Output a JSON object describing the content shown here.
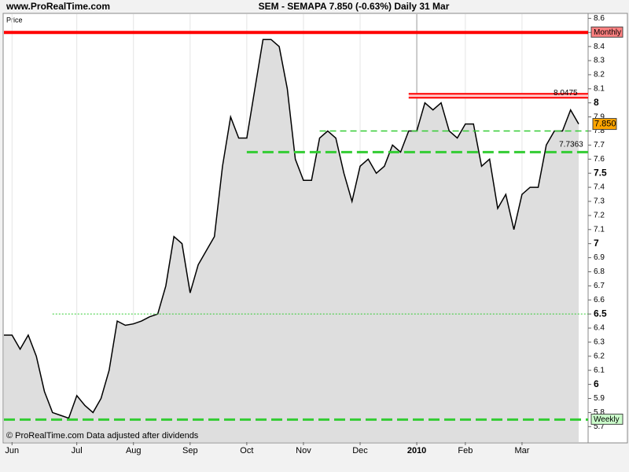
{
  "chart_data": {
    "type": "line",
    "site": "www.ProRealTime.com",
    "title": "SEM - SEMAPA    7.850 (-0.63%)    Daily  31 Mar",
    "panel_label": "Price",
    "footer": "© ProRealTime.com  Data adjusted after dividends",
    "categories": [
      null,
      "Jun",
      null,
      null,
      null,
      null,
      null,
      null,
      null,
      "Jul",
      null,
      null,
      null,
      null,
      null,
      null,
      "Aug",
      null,
      null,
      null,
      null,
      null,
      null,
      "Sep",
      null,
      null,
      null,
      null,
      null,
      null,
      "Oct",
      null,
      null,
      null,
      null,
      null,
      null,
      "Nov",
      null,
      null,
      null,
      null,
      null,
      null,
      "Dec",
      null,
      null,
      null,
      null,
      null,
      null,
      "2010",
      null,
      null,
      null,
      null,
      null,
      "Feb",
      null,
      null,
      null,
      null,
      null,
      null,
      "Mar",
      null,
      null,
      null,
      null,
      null,
      null,
      null
    ],
    "series": [
      {
        "name": "SEMAPA",
        "color": "#000000",
        "fill": "#dedede",
        "values": [
          6.35,
          6.35,
          6.25,
          6.35,
          6.2,
          5.95,
          5.8,
          5.78,
          5.76,
          5.92,
          5.85,
          5.8,
          5.9,
          6.1,
          6.45,
          6.42,
          6.43,
          6.45,
          6.48,
          6.5,
          6.7,
          7.05,
          7.0,
          6.65,
          6.85,
          6.95,
          7.05,
          7.55,
          7.9,
          7.75,
          7.75,
          8.1,
          8.45,
          8.45,
          8.4,
          8.1,
          7.6,
          7.45,
          7.45,
          7.75,
          7.8,
          7.75,
          7.5,
          7.3,
          7.55,
          7.6,
          7.5,
          7.55,
          7.7,
          7.65,
          7.8,
          7.8,
          8.0,
          7.95,
          8.0,
          7.8,
          7.75,
          7.85,
          7.85,
          7.55,
          7.6,
          7.25,
          7.35,
          7.1,
          7.35,
          7.4,
          7.4,
          7.7,
          7.8,
          7.8,
          7.95,
          7.85
        ]
      }
    ],
    "last_price": {
      "value": 7.85,
      "label": "7.850",
      "color": "#ffa500"
    },
    "levels": [
      {
        "value": 8.5,
        "color": "#ff0000",
        "style": "solid",
        "start": 0,
        "label": "Monthly"
      },
      {
        "value": 8.0475,
        "color": "#ff0000",
        "style": "double",
        "start": 50,
        "label": "8.0475"
      },
      {
        "value": 7.8,
        "color": "#33cc33",
        "style": "dashed",
        "start": 39
      },
      {
        "value": 7.7363,
        "color": "#33cc33",
        "style": "none",
        "start": 68,
        "label": "7.7363"
      },
      {
        "value": 7.65,
        "color": "#33cc33",
        "style": "thickdash",
        "start": 30
      },
      {
        "value": 6.5,
        "color": "#33cc33",
        "style": "dotted",
        "start": 6
      },
      {
        "value": 5.75,
        "color": "#33cc33",
        "style": "thickdash",
        "start": 0,
        "label": "Weekly"
      }
    ],
    "ylim": [
      5.59,
      8.63
    ],
    "yticks": [
      5.7,
      5.8,
      5.9,
      6,
      6.1,
      6.2,
      6.3,
      6.4,
      6.5,
      6.6,
      6.7,
      6.8,
      6.9,
      7,
      7.1,
      7.2,
      7.3,
      7.4,
      7.5,
      7.6,
      7.7,
      7.8,
      7.9,
      8,
      8.1,
      8.2,
      8.3,
      8.4,
      8.5,
      8.6
    ],
    "grid": true
  }
}
